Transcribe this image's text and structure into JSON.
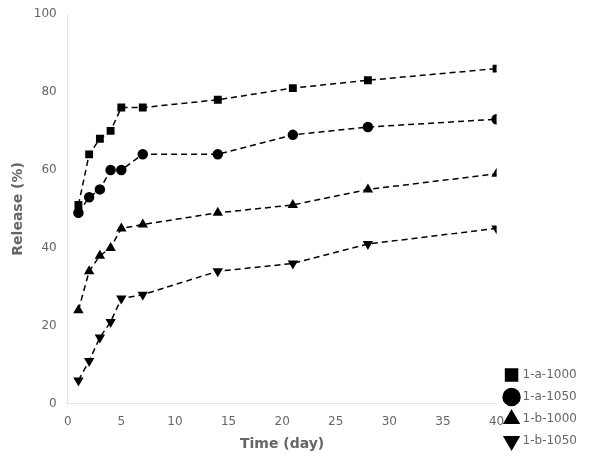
{
  "chart_data": {
    "type": "line",
    "x": [
      1,
      2,
      3,
      4,
      5,
      7,
      14,
      21,
      28,
      40
    ],
    "series": [
      {
        "name": "1-a-1000",
        "marker": "square",
        "values": [
          51,
          64,
          68,
          70,
          76,
          76,
          78,
          81,
          83,
          86
        ]
      },
      {
        "name": "1-a-1050",
        "marker": "circle",
        "values": [
          49,
          53,
          55,
          60,
          60,
          64,
          64,
          69,
          71,
          73
        ]
      },
      {
        "name": "1-b-1000",
        "marker": "triangle-up",
        "values": [
          24,
          34,
          38,
          40,
          45,
          46,
          49,
          51,
          55,
          59
        ]
      },
      {
        "name": "1-b-1050",
        "marker": "triangle-down",
        "values": [
          6,
          11,
          17,
          21,
          27,
          28,
          34,
          36,
          41,
          45
        ]
      }
    ],
    "color": "black",
    "line_style": "dashed",
    "xlabel": "Time (day)",
    "ylabel": "Release (%)",
    "xlim": [
      0,
      40
    ],
    "ylim": [
      0,
      100
    ],
    "xticks": [
      0,
      5,
      10,
      15,
      20,
      25,
      30,
      35,
      40
    ],
    "yticks": [
      0,
      20,
      40,
      60,
      80,
      100
    ],
    "legend": "lower right",
    "grid": false
  }
}
